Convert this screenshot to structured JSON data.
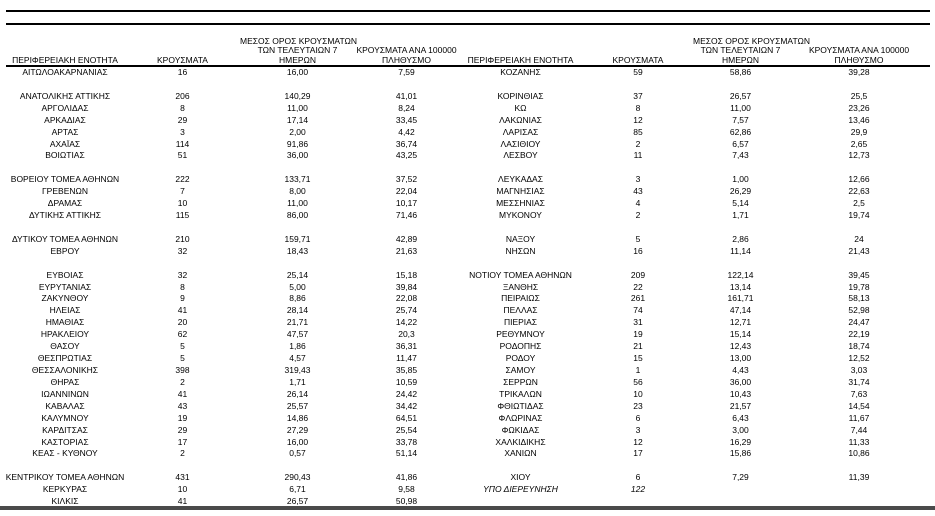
{
  "table": {
    "headers": {
      "region": "ΠΕΡΙΦΕΡΕΙΑΚΗ ΕΝΟΤΗΤΑ",
      "cases": "ΚΡΟΥΣΜΑΤΑ",
      "avg7_lines": [
        "ΜΕΣΟΣ ΟΡΟΣ ΚΡΟΥΣΜΑΤΩΝ",
        "ΤΩΝ ΤΕΛΕΥΤΑΙΩΝ 7",
        "ΗΜΕΡΩΝ"
      ],
      "per100k_lines": [
        "ΚΡΟΥΣΜΑΤΑ ΑΝΑ 100000",
        "ΠΛΗΘΥΣΜΟ"
      ]
    },
    "left_rows": [
      [
        "ΑΙΤΩΛΟΑΚΑΡΝΑΝΙΑΣ",
        "16",
        "16,00",
        "7,59"
      ],
      null,
      [
        "ΑΝΑΤΟΛΙΚΗΣ ΑΤΤΙΚΗΣ",
        "206",
        "140,29",
        "41,01"
      ],
      [
        "ΑΡΓΟΛΙΔΑΣ",
        "8",
        "11,00",
        "8,24"
      ],
      [
        "ΑΡΚΑΔΙΑΣ",
        "29",
        "17,14",
        "33,45"
      ],
      [
        "ΑΡΤΑΣ",
        "3",
        "2,00",
        "4,42"
      ],
      [
        "ΑΧΑΪΑΣ",
        "114",
        "91,86",
        "36,74"
      ],
      [
        "ΒΟΙΩΤΙΑΣ",
        "51",
        "36,00",
        "43,25"
      ],
      null,
      [
        "ΒΟΡΕΙΟΥ ΤΟΜΕΑ ΑΘΗΝΩΝ",
        "222",
        "133,71",
        "37,52"
      ],
      [
        "ΓΡΕΒΕΝΩΝ",
        "7",
        "8,00",
        "22,04"
      ],
      [
        "ΔΡΑΜΑΣ",
        "10",
        "11,00",
        "10,17"
      ],
      [
        "ΔΥΤΙΚΗΣ ΑΤΤΙΚΗΣ",
        "115",
        "86,00",
        "71,46"
      ],
      null,
      [
        "ΔΥΤΙΚΟΥ ΤΟΜΕΑ ΑΘΗΝΩΝ",
        "210",
        "159,71",
        "42,89"
      ],
      [
        "ΕΒΡΟΥ",
        "32",
        "18,43",
        "21,63"
      ],
      null,
      [
        "ΕΥΒΟΙΑΣ",
        "32",
        "25,14",
        "15,18"
      ],
      [
        "ΕΥΡΥΤΑΝΙΑΣ",
        "8",
        "5,00",
        "39,84"
      ],
      [
        "ΖΑΚΥΝΘΟΥ",
        "9",
        "8,86",
        "22,08"
      ],
      [
        "ΗΛΕΙΑΣ",
        "41",
        "28,14",
        "25,74"
      ],
      [
        "ΗΜΑΘΙΑΣ",
        "20",
        "21,71",
        "14,22"
      ],
      [
        "ΗΡΑΚΛΕΙΟΥ",
        "62",
        "47,57",
        "20,3"
      ],
      [
        "ΘΑΣΟΥ",
        "5",
        "1,86",
        "36,31"
      ],
      [
        "ΘΕΣΠΡΩΤΙΑΣ",
        "5",
        "4,57",
        "11,47"
      ],
      [
        "ΘΕΣΣΑΛΟΝΙΚΗΣ",
        "398",
        "319,43",
        "35,85"
      ],
      [
        "ΘΗΡΑΣ",
        "2",
        "1,71",
        "10,59"
      ],
      [
        "ΙΩΑΝΝΙΝΩΝ",
        "41",
        "26,14",
        "24,42"
      ],
      [
        "ΚΑΒΑΛΑΣ",
        "43",
        "25,57",
        "34,42"
      ],
      [
        "ΚΑΛΥΜΝΟΥ",
        "19",
        "14,86",
        "64,51"
      ],
      [
        "ΚΑΡΔΙΤΣΑΣ",
        "29",
        "27,29",
        "25,54"
      ],
      [
        "ΚΑΣΤΟΡΙΑΣ",
        "17",
        "16,00",
        "33,78"
      ],
      [
        "ΚΕΑΣ - ΚΥΘΝΟΥ",
        "2",
        "0,57",
        "51,14"
      ],
      null,
      [
        "ΚΕΝΤΡΙΚΟΥ ΤΟΜΕΑ ΑΘΗΝΩΝ",
        "431",
        "290,43",
        "41,86"
      ],
      [
        "ΚΕΡΚΥΡΑΣ",
        "10",
        "6,71",
        "9,58"
      ],
      [
        "ΚΙΛΚΙΣ",
        "41",
        "26,57",
        "50,98"
      ]
    ],
    "right_rows": [
      [
        "ΚΟΖΑΝΗΣ",
        "59",
        "58,86",
        "39,28"
      ],
      null,
      [
        "ΚΟΡΙΝΘΙΑΣ",
        "37",
        "26,57",
        "25,5"
      ],
      [
        "ΚΩ",
        "8",
        "11,00",
        "23,26"
      ],
      [
        "ΛΑΚΩΝΙΑΣ",
        "12",
        "7,57",
        "13,46"
      ],
      [
        "ΛΑΡΙΣΑΣ",
        "85",
        "62,86",
        "29,9"
      ],
      [
        "ΛΑΣΙΘΙΟΥ",
        "2",
        "6,57",
        "2,65"
      ],
      [
        "ΛΕΣΒΟΥ",
        "11",
        "7,43",
        "12,73"
      ],
      null,
      [
        "ΛΕΥΚΑΔΑΣ",
        "3",
        "1,00",
        "12,66"
      ],
      [
        "ΜΑΓΝΗΣΙΑΣ",
        "43",
        "26,29",
        "22,63"
      ],
      [
        "ΜΕΣΣΗΝΙΑΣ",
        "4",
        "5,14",
        "2,5"
      ],
      [
        "ΜΥΚΟΝΟΥ",
        "2",
        "1,71",
        "19,74"
      ],
      null,
      [
        "ΝΑΞΟΥ",
        "5",
        "2,86",
        "24"
      ],
      [
        "ΝΗΣΩΝ",
        "16",
        "11,14",
        "21,43"
      ],
      null,
      [
        "ΝΟΤΙΟΥ ΤΟΜΕΑ ΑΘΗΝΩΝ",
        "209",
        "122,14",
        "39,45"
      ],
      [
        "ΞΑΝΘΗΣ",
        "22",
        "13,14",
        "19,78"
      ],
      [
        "ΠΕΙΡΑΙΩΣ",
        "261",
        "161,71",
        "58,13"
      ],
      [
        "ΠΕΛΛΑΣ",
        "74",
        "47,14",
        "52,98"
      ],
      [
        "ΠΙΕΡΙΑΣ",
        "31",
        "12,71",
        "24,47"
      ],
      [
        "ΡΕΘΥΜΝΟΥ",
        "19",
        "15,14",
        "22,19"
      ],
      [
        "ΡΟΔΟΠΗΣ",
        "21",
        "12,43",
        "18,74"
      ],
      [
        "ΡΟΔΟΥ",
        "15",
        "13,00",
        "12,52"
      ],
      [
        "ΣΑΜΟΥ",
        "1",
        "4,43",
        "3,03"
      ],
      [
        "ΣΕΡΡΩΝ",
        "56",
        "36,00",
        "31,74"
      ],
      [
        "ΤΡΙΚΑΛΩΝ",
        "10",
        "10,43",
        "7,63"
      ],
      [
        "ΦΘΙΩΤΙΔΑΣ",
        "23",
        "21,57",
        "14,54"
      ],
      [
        "ΦΛΩΡΙΝΑΣ",
        "6",
        "6,43",
        "11,67"
      ],
      [
        "ΦΩΚΙΔΑΣ",
        "3",
        "3,00",
        "7,44"
      ],
      [
        "ΧΑΛΚΙΔΙΚΗΣ",
        "12",
        "16,29",
        "11,33"
      ],
      [
        "ΧΑΝΙΩΝ",
        "17",
        "15,86",
        "10,86"
      ],
      null,
      [
        "ΧΙΟΥ",
        "6",
        "7,29",
        "11,39"
      ],
      [
        "ΥΠΟ ΔΙΕΡΕΥΝΗΣΗ",
        "122",
        "",
        "",
        "italic"
      ],
      null
    ]
  },
  "colors": {
    "text": "#000000",
    "rule": "#000000",
    "bottom_rule": "#4a4a4a",
    "background": "#ffffff"
  }
}
